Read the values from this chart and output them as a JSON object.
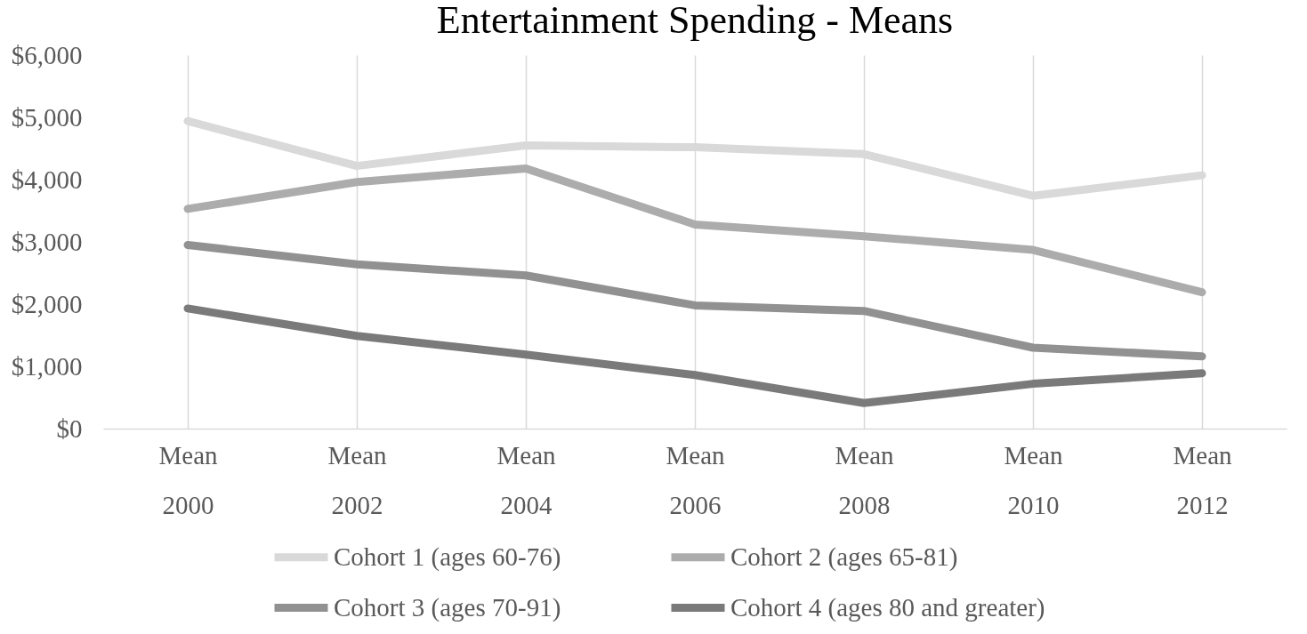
{
  "chart_data": {
    "type": "line",
    "title": "Entertainment Spending - Means",
    "categories": [
      "Mean\n2000",
      "Mean\n2002",
      "Mean\n2004",
      "Mean\n2006",
      "Mean\n2008",
      "Mean\n2010",
      "Mean\n2012"
    ],
    "series": [
      {
        "name": "Cohort 1 (ages 60-76)",
        "color": "#d9d9d9",
        "values": [
          4940,
          4220,
          4550,
          4520,
          4410,
          3740,
          4070
        ]
      },
      {
        "name": "Cohort 2 (ages 65-81)",
        "color": "#acacac",
        "values": [
          3530,
          3960,
          4180,
          3280,
          3090,
          2870,
          2190
        ]
      },
      {
        "name": "Cohort 3 (ages 70-91)",
        "color": "#919191",
        "values": [
          2950,
          2640,
          2460,
          1980,
          1890,
          1300,
          1160
        ]
      },
      {
        "name": "Cohort 4 (ages 80 and greater)",
        "color": "#7a7a7a",
        "values": [
          1930,
          1490,
          1190,
          860,
          410,
          720,
          890
        ]
      }
    ],
    "ylim": [
      0,
      6000
    ],
    "yticks": [
      {
        "value": 0,
        "label": "$0"
      },
      {
        "value": 1000,
        "label": "$1,000"
      },
      {
        "value": 2000,
        "label": "$2,000"
      },
      {
        "value": 3000,
        "label": "$3,000"
      },
      {
        "value": 4000,
        "label": "$4,000"
      },
      {
        "value": 5000,
        "label": "$5,000"
      },
      {
        "value": 6000,
        "label": "$6,000"
      }
    ],
    "grid": "x",
    "legend": "bottom",
    "marker": "none",
    "line_style": "solid"
  }
}
